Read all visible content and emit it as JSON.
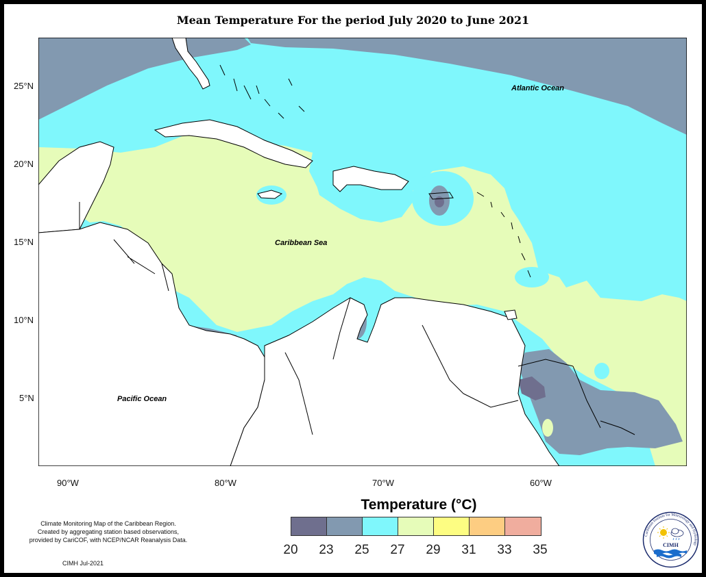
{
  "title": "Mean Temperature For the period July 2020 to June 2021",
  "map": {
    "labels": {
      "atlantic": "Atlantic Ocean",
      "caribbean": "Caribbean Sea",
      "pacific": "Pacific Ocean"
    },
    "lat_ticks": [
      "25°N",
      "20°N",
      "15°N",
      "10°N",
      "5°N"
    ],
    "lon_ticks": [
      "90°W",
      "80°W",
      "70°W",
      "60°W"
    ],
    "extent": {
      "lon": [
        -92,
        -51
      ],
      "lat": [
        1,
        28
      ]
    },
    "zone_colors": {
      "20_23": "#6f6f8e",
      "23_25": "#8299b0",
      "25_27": "#7ff7fc",
      "27_29": "#e6fcb9",
      "land": "#ffffff"
    }
  },
  "legend": {
    "title": "Temperature (°C)",
    "ticks": [
      "20",
      "23",
      "25",
      "27",
      "29",
      "31",
      "33",
      "35"
    ],
    "colors": [
      "#6f6f8e",
      "#8299b0",
      "#7ff7fc",
      "#e6fcb9",
      "#fdfd82",
      "#fdcd82",
      "#f0ad9e"
    ]
  },
  "credit": {
    "lines": [
      "Climate Monitoring Map of the Caribbean Region.",
      "Created by aggregating station based observations,",
      "provided by CariCOF, with NCEP/NCAR Reanalysis Data."
    ],
    "date": "CIMH Jul-2021"
  },
  "logo": {
    "ring_text": "Caribbean Institute for Meteorology and Hydrology",
    "abbr": "CIMH",
    "icons": [
      "sun-icon",
      "cloud-icon",
      "waves-icon"
    ]
  }
}
